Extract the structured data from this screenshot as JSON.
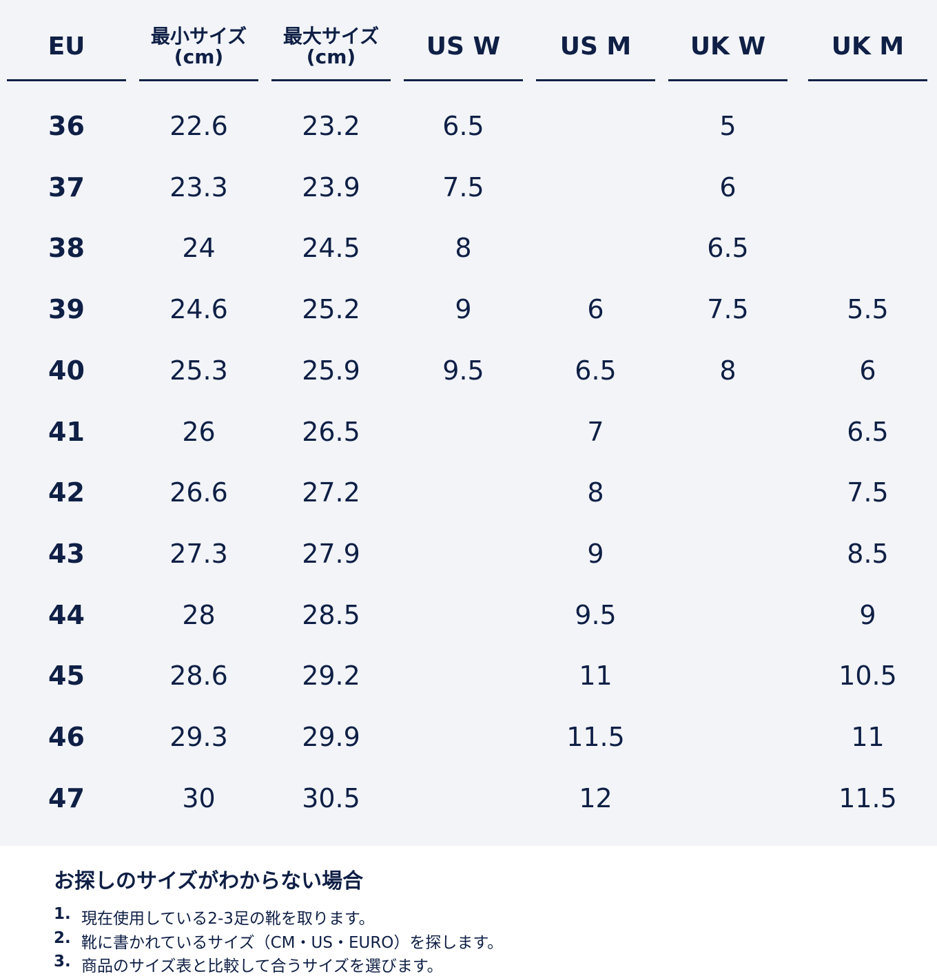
{
  "table": {
    "headers": [
      "EU",
      "最小サイズ\n(cm)",
      "最大サイズ\n(cm)",
      "US W",
      "US M",
      "UK W",
      "UK M"
    ],
    "rows": [
      [
        36,
        22.6,
        23.2,
        6.5,
        null,
        5,
        null
      ],
      [
        37,
        23.3,
        23.9,
        7.5,
        null,
        6,
        null
      ],
      [
        38,
        24,
        24.5,
        8,
        null,
        6.5,
        null
      ],
      [
        39,
        24.6,
        25.2,
        9,
        6,
        7.5,
        5.5
      ],
      [
        40,
        25.3,
        25.9,
        9.5,
        6.5,
        8,
        6
      ],
      [
        41,
        26,
        26.5,
        null,
        7,
        null,
        6.5
      ],
      [
        42,
        26.6,
        27.2,
        null,
        8,
        null,
        7.5
      ],
      [
        43,
        27.3,
        27.9,
        null,
        9,
        null,
        8.5
      ],
      [
        44,
        28,
        28.5,
        null,
        9.5,
        null,
        9
      ],
      [
        45,
        28.6,
        29.2,
        null,
        11,
        null,
        10.5
      ],
      [
        46,
        29.3,
        29.9,
        null,
        11.5,
        null,
        11
      ],
      [
        47,
        30,
        30.5,
        null,
        12,
        null,
        11.5
      ]
    ]
  },
  "note": {
    "title": "お探しのサイズがわからない場合",
    "items": [
      {
        "number": "1.",
        "text": "現在使用している2-3足の靴を取ります。"
      },
      {
        "number": "2.",
        "text": "靴に書かれているサイズ（CM・US・EURO）を探します。"
      },
      {
        "number": "3.",
        "text": "商品のサイズ表と比較して合うサイズを選びます。"
      }
    ]
  }
}
